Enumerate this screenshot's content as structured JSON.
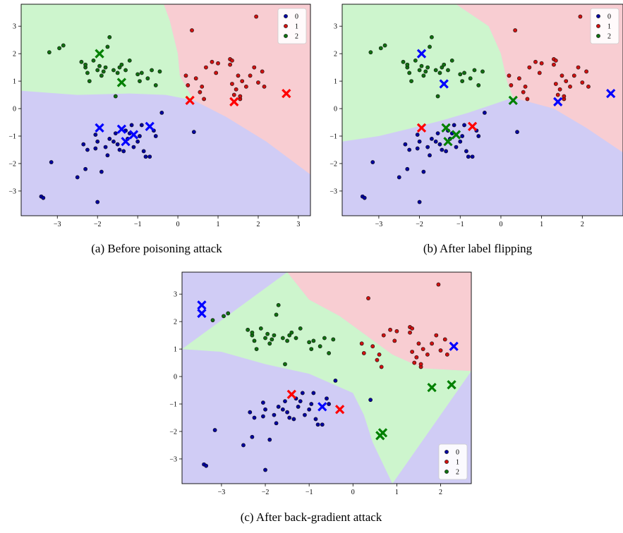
{
  "colors": {
    "class0_region": "#d0ccf5",
    "class1_region": "#f8cdd2",
    "class2_region": "#cdf5cd",
    "class0_point": "#0000a0",
    "class1_point": "#d01010",
    "class2_point": "#107010",
    "x_marker": {
      "0": "#0000ff",
      "1": "#ff0000",
      "2": "#008000"
    }
  },
  "chart_data": [
    {
      "type": "scatter",
      "caption": "(a) Before poisoning attack",
      "xlim": [
        -3.9,
        3.3
      ],
      "ylim": [
        -3.9,
        3.8
      ],
      "xticks": [
        -3,
        -2,
        -1,
        0,
        1,
        2,
        3
      ],
      "yticks": [
        -3,
        -2,
        -1,
        0,
        1,
        2,
        3
      ],
      "legend": {
        "position": "top-right",
        "labels": [
          "0",
          "1",
          "2"
        ]
      },
      "regions": {
        "boundary_2_1": [
          [
            -0.35,
            3.8
          ],
          [
            -0.2,
            3.2
          ],
          [
            0.0,
            2.0
          ],
          [
            0.05,
            1.2
          ],
          [
            0.2,
            0.8
          ],
          [
            0.4,
            0.3
          ]
        ],
        "boundary_1_0": [
          [
            0.4,
            0.3
          ],
          [
            1.2,
            -0.3
          ],
          [
            2.2,
            -1.2
          ],
          [
            3.3,
            -2.4
          ]
        ],
        "boundary_2_0": [
          [
            -3.9,
            0.65
          ],
          [
            -2.5,
            0.5
          ],
          [
            -1.2,
            0.55
          ],
          [
            -0.3,
            0.5
          ],
          [
            0.4,
            0.3
          ]
        ]
      },
      "poison_markers": [
        {
          "class": "0",
          "x": -1.95,
          "y": -0.7
        },
        {
          "class": "0",
          "x": -1.4,
          "y": -0.75
        },
        {
          "class": "0",
          "x": -1.3,
          "y": -1.2
        },
        {
          "class": "0",
          "x": -1.1,
          "y": -0.95
        },
        {
          "class": "0",
          "x": -0.7,
          "y": -0.65
        },
        {
          "class": "1",
          "x": 0.3,
          "y": 0.3
        },
        {
          "class": "1",
          "x": 1.4,
          "y": 0.25
        },
        {
          "class": "1",
          "x": 2.7,
          "y": 0.55
        },
        {
          "class": "2",
          "x": -1.95,
          "y": 2.0
        },
        {
          "class": "2",
          "x": -1.4,
          "y": 0.95
        }
      ]
    },
    {
      "type": "scatter",
      "caption": "(b) After label flipping",
      "xlim": [
        -3.9,
        3.0
      ],
      "ylim": [
        -3.9,
        3.8
      ],
      "xticks": [
        -3,
        -2,
        -1,
        0,
        1,
        2
      ],
      "yticks": [
        -3,
        -2,
        -1,
        0,
        1,
        2,
        3
      ],
      "legend": {
        "position": "top-right",
        "labels": [
          "0",
          "1",
          "2"
        ]
      },
      "regions": {
        "boundary_2_1": [
          [
            -1.1,
            3.8
          ],
          [
            -0.3,
            3.0
          ],
          [
            0.0,
            2.0
          ],
          [
            0.15,
            1.0
          ],
          [
            0.3,
            0.4
          ]
        ],
        "boundary_1_0": [
          [
            0.3,
            0.4
          ],
          [
            1.3,
            0.0
          ],
          [
            2.1,
            -0.7
          ],
          [
            3.0,
            -1.6
          ]
        ],
        "boundary_2_0": [
          [
            -3.9,
            -1.2
          ],
          [
            -3.0,
            -1.0
          ],
          [
            -2.3,
            -0.75
          ],
          [
            -1.5,
            -0.45
          ],
          [
            -0.8,
            -0.15
          ],
          [
            0.3,
            0.4
          ]
        ]
      },
      "poison_markers": [
        {
          "class": "1",
          "x": -1.95,
          "y": -0.7
        },
        {
          "class": "2",
          "x": -1.35,
          "y": -0.7
        },
        {
          "class": "2",
          "x": -1.3,
          "y": -1.2
        },
        {
          "class": "2",
          "x": -1.1,
          "y": -0.95
        },
        {
          "class": "1",
          "x": -0.7,
          "y": -0.65
        },
        {
          "class": "2",
          "x": 0.3,
          "y": 0.3
        },
        {
          "class": "0",
          "x": 1.4,
          "y": 0.25
        },
        {
          "class": "0",
          "x": 2.7,
          "y": 0.55
        },
        {
          "class": "0",
          "x": -1.95,
          "y": 2.0
        },
        {
          "class": "0",
          "x": -1.4,
          "y": 0.9
        }
      ]
    },
    {
      "type": "scatter",
      "caption": "(c) After back-gradient attack",
      "xlim": [
        -3.9,
        2.7
      ],
      "ylim": [
        -3.9,
        3.8
      ],
      "xticks": [
        -3,
        -2,
        -1,
        0,
        1,
        2
      ],
      "yticks": [
        -3,
        -2,
        -1,
        0,
        1,
        2,
        3
      ],
      "legend": {
        "position": "bottom-right",
        "labels": [
          "0",
          "1",
          "2"
        ]
      },
      "regions": {
        "boundary_2_1": [
          [
            -1.5,
            3.8
          ],
          [
            -1.0,
            2.8
          ],
          [
            -0.3,
            2.2
          ],
          [
            0.3,
            1.5
          ],
          [
            0.9,
            0.8
          ],
          [
            1.6,
            0.3
          ],
          [
            2.7,
            0.2
          ]
        ],
        "boundary_2_0": [
          [
            -3.9,
            1.0
          ],
          [
            -3.0,
            0.9
          ],
          [
            -2.0,
            0.45
          ],
          [
            -1.0,
            0.1
          ],
          [
            0.0,
            -0.6
          ],
          [
            0.25,
            -1.4
          ],
          [
            0.45,
            -2.4
          ],
          [
            0.9,
            -3.9
          ]
        ],
        "top_left_patch": [
          [
            -3.9,
            3.8
          ],
          [
            -3.6,
            3.8
          ],
          [
            -3.7,
            3.5
          ],
          [
            -3.9,
            3.4
          ]
        ]
      },
      "poison_markers": [
        {
          "class": "0",
          "x": -3.45,
          "y": 2.6
        },
        {
          "class": "0",
          "x": -3.45,
          "y": 2.3
        },
        {
          "class": "1",
          "x": -1.4,
          "y": -0.65
        },
        {
          "class": "0",
          "x": -0.7,
          "y": -1.1
        },
        {
          "class": "1",
          "x": -0.3,
          "y": -1.2
        },
        {
          "class": "2",
          "x": 0.62,
          "y": -2.15
        },
        {
          "class": "2",
          "x": 0.68,
          "y": -2.05
        },
        {
          "class": "2",
          "x": 1.8,
          "y": -0.4
        },
        {
          "class": "2",
          "x": 2.25,
          "y": -0.3
        },
        {
          "class": "0",
          "x": 2.3,
          "y": 1.1
        }
      ]
    }
  ],
  "points": {
    "class0": [
      [
        -3.4,
        -3.2
      ],
      [
        -3.35,
        -3.25
      ],
      [
        -3.15,
        -1.95
      ],
      [
        -2.0,
        -3.4
      ],
      [
        -2.5,
        -2.5
      ],
      [
        -2.3,
        -2.2
      ],
      [
        -1.9,
        -2.3
      ],
      [
        -1.75,
        -1.7
      ],
      [
        -2.35,
        -1.3
      ],
      [
        -2.25,
        -1.5
      ],
      [
        -2.05,
        -1.45
      ],
      [
        -2.0,
        -1.2
      ],
      [
        -1.8,
        -1.4
      ],
      [
        -1.7,
        -1.1
      ],
      [
        -1.5,
        -1.3
      ],
      [
        -1.45,
        -1.5
      ],
      [
        -1.35,
        -1.55
      ],
      [
        -1.25,
        -1.1
      ],
      [
        -1.2,
        -0.9
      ],
      [
        -1.1,
        -1.4
      ],
      [
        -1.0,
        -1.2
      ],
      [
        -0.95,
        -1.0
      ],
      [
        -0.9,
        -0.6
      ],
      [
        -0.85,
        -1.55
      ],
      [
        -0.8,
        -1.75
      ],
      [
        -0.7,
        -1.75
      ],
      [
        -0.6,
        -0.8
      ],
      [
        -0.55,
        -1.0
      ],
      [
        -1.55,
        -0.9
      ],
      [
        -1.6,
        -1.2
      ],
      [
        -1.3,
        -0.8
      ],
      [
        -1.15,
        -0.6
      ],
      [
        -0.4,
        -0.15
      ],
      [
        0.4,
        -0.85
      ],
      [
        -2.05,
        -0.95
      ]
    ],
    "class1": [
      [
        0.2,
        1.2
      ],
      [
        0.25,
        0.85
      ],
      [
        0.45,
        1.1
      ],
      [
        0.55,
        0.6
      ],
      [
        0.6,
        0.8
      ],
      [
        0.7,
        1.5
      ],
      [
        0.85,
        1.7
      ],
      [
        0.95,
        1.3
      ],
      [
        1.0,
        1.65
      ],
      [
        1.3,
        1.6
      ],
      [
        1.35,
        0.9
      ],
      [
        1.4,
        0.5
      ],
      [
        1.45,
        0.7
      ],
      [
        1.5,
        1.2
      ],
      [
        1.3,
        1.8
      ],
      [
        1.35,
        1.75
      ],
      [
        1.6,
        1.0
      ],
      [
        1.7,
        0.8
      ],
      [
        1.8,
        1.2
      ],
      [
        1.9,
        1.5
      ],
      [
        2.0,
        0.95
      ],
      [
        2.1,
        1.35
      ],
      [
        2.15,
        0.8
      ],
      [
        1.95,
        3.35
      ],
      [
        0.35,
        2.85
      ],
      [
        0.65,
        0.35
      ],
      [
        1.55,
        0.35
      ],
      [
        1.55,
        0.45
      ]
    ],
    "class2": [
      [
        -3.2,
        2.05
      ],
      [
        -2.95,
        2.2
      ],
      [
        -2.85,
        2.3
      ],
      [
        -2.4,
        1.7
      ],
      [
        -2.3,
        1.5
      ],
      [
        -2.3,
        1.6
      ],
      [
        -2.25,
        1.3
      ],
      [
        -2.1,
        1.75
      ],
      [
        -2.0,
        1.4
      ],
      [
        -1.95,
        1.55
      ],
      [
        -1.9,
        1.2
      ],
      [
        -1.85,
        1.35
      ],
      [
        -1.8,
        1.5
      ],
      [
        -1.75,
        2.25
      ],
      [
        -1.7,
        2.6
      ],
      [
        -1.6,
        1.4
      ],
      [
        -1.5,
        1.3
      ],
      [
        -1.45,
        1.5
      ],
      [
        -1.4,
        1.6
      ],
      [
        -1.3,
        1.4
      ],
      [
        -1.2,
        1.75
      ],
      [
        -1.0,
        1.25
      ],
      [
        -0.95,
        1.0
      ],
      [
        -0.9,
        1.3
      ],
      [
        -0.75,
        1.1
      ],
      [
        -0.65,
        1.4
      ],
      [
        -0.55,
        0.85
      ],
      [
        -0.45,
        1.35
      ],
      [
        -1.55,
        0.45
      ],
      [
        -2.2,
        1.0
      ]
    ]
  }
}
